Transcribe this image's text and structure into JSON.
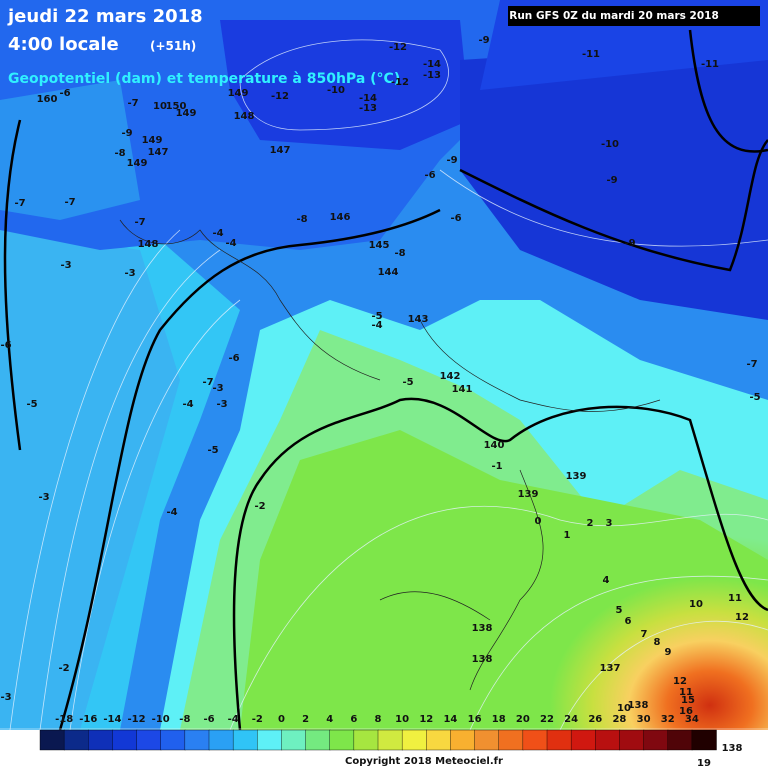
{
  "header": {
    "date": "jeudi 22 mars 2018",
    "time": "4:00 locale",
    "lead": "(+51h)",
    "subtitle": "Geopotentiel (dam) et temperature à 850hPa (°C)",
    "run": "Run GFS 0Z du mardi 20 mars 2018"
  },
  "map": {
    "labels": [
      "-9",
      "-12",
      "-14",
      "-13",
      "-11",
      "-11",
      "-12",
      "149",
      "-12",
      "-10",
      "-14",
      "-13",
      "150",
      "10",
      "-7",
      "149",
      "148",
      "-9",
      "149",
      "-8",
      "147",
      "149",
      "147",
      "-10",
      "-9",
      "-6",
      "-9",
      "-7",
      "-7",
      "-8",
      "146",
      "-6",
      "-7",
      "-4",
      "-4",
      "148",
      "145",
      "-8",
      "-9",
      "-3",
      "-3",
      "144",
      "-5",
      "-4",
      "143",
      "-6",
      "-6",
      "-7",
      "-7",
      "-3",
      "142",
      "141",
      "-5",
      "-5",
      "-5",
      "-4",
      "-3",
      "-5",
      "140",
      "-1",
      "139",
      "-3",
      "139",
      "-2",
      "-4",
      "0",
      "2",
      "3",
      "1",
      "4",
      "10",
      "11",
      "5",
      "6",
      "12",
      "7",
      "8",
      "9",
      "138",
      "138",
      "-2",
      "137",
      "12",
      "11",
      "15",
      "16",
      "138",
      "10",
      "-3",
      "160",
      "-6"
    ]
  },
  "legend": {
    "scale": [
      -18,
      -16,
      -14,
      -12,
      -10,
      -8,
      -6,
      -4,
      -2,
      0,
      2,
      4,
      6,
      8,
      10,
      12,
      14,
      16,
      18,
      20,
      22,
      24,
      26,
      28,
      30,
      32,
      34
    ],
    "corner_value": "138",
    "corner_value_2": "19"
  },
  "footer": {
    "copyright": "Copyright 2018 Meteociel.fr"
  }
}
